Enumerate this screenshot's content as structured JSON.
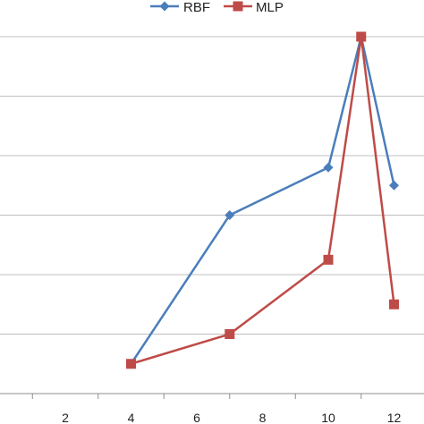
{
  "chart_data": {
    "type": "line",
    "x_ticks": [
      2,
      4,
      6,
      8,
      10,
      12
    ],
    "xlim": [
      0,
      12.5
    ],
    "ylim": [
      0,
      6
    ],
    "y_gridlines": [
      0,
      1,
      2,
      3,
      4,
      5,
      6
    ],
    "grid": "horizontal",
    "legend_position": "top",
    "series": [
      {
        "name": "RBF",
        "color": "#4a7ebb",
        "marker": "diamond",
        "points": [
          [
            4,
            0.5
          ],
          [
            7,
            3.0
          ],
          [
            10,
            3.8
          ],
          [
            11,
            6.0
          ],
          [
            12,
            3.5
          ]
        ]
      },
      {
        "name": "MLP",
        "color": "#be4b48",
        "marker": "square",
        "points": [
          [
            4,
            0.5
          ],
          [
            7,
            1.0
          ],
          [
            10,
            2.25
          ],
          [
            11,
            6.0
          ],
          [
            12,
            1.5
          ]
        ]
      }
    ]
  }
}
